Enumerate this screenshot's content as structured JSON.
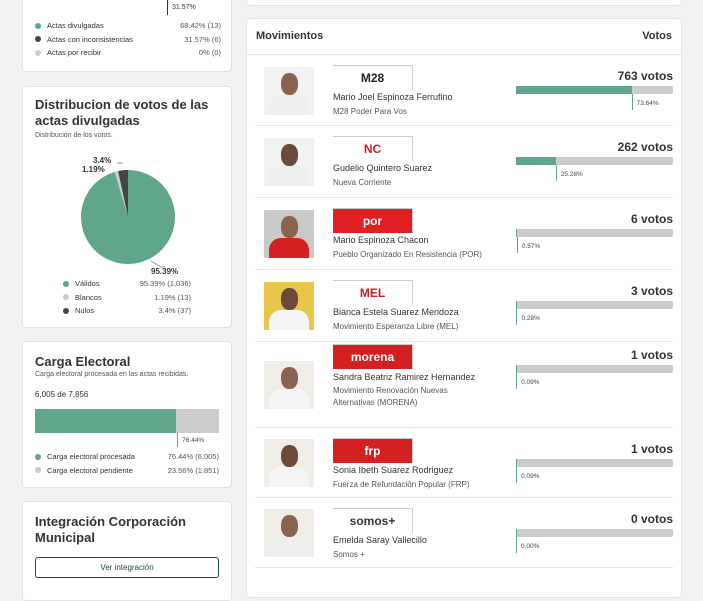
{
  "actas": {
    "top_pct": "31.57%",
    "legend": [
      {
        "label": "Actas divulgadas",
        "value": "68.42% (13)",
        "color": "#5fa68a"
      },
      {
        "label": "Actas con inconsistencias",
        "value": "31.57% (6)",
        "color": "#444444"
      },
      {
        "label": "Actas por recibir",
        "value": "0% (0)",
        "color": "#cccccc"
      }
    ]
  },
  "distribucion": {
    "title": "Distribucion de votos de las actas divulgadas",
    "subtitle": "Distribución de los votos.",
    "labels": {
      "nulos": "3.4%",
      "blancos": "1.19%",
      "validos": "95.39%"
    },
    "legend": [
      {
        "label": "Válidos",
        "value": "95.39% (1,036)",
        "color": "#5fa68a"
      },
      {
        "label": "Blancos",
        "value": "1.19% (13)",
        "color": "#cccccc"
      },
      {
        "label": "Nulos",
        "value": "3.4% (37)",
        "color": "#444444"
      }
    ]
  },
  "carga": {
    "title": "Carga Electoral",
    "subtitle": "Carga electoral procesada en las actas recibidas.",
    "count": "6,005 de 7,856",
    "percent": 76.44,
    "pct_label": "76.44%",
    "legend": [
      {
        "label": "Carga electoral procesada",
        "value": "76.44% (6,005)",
        "color": "#5fa68a"
      },
      {
        "label": "Carga electoral pendiente",
        "value": "23.56% (1,851)",
        "color": "#cccccc"
      }
    ]
  },
  "integracion": {
    "title": "Integración Corporación Municipal",
    "button": "Ver integración"
  },
  "movimientos": {
    "header": "Movimientos",
    "header_right": "Votos",
    "candidates": [
      {
        "name": "Mario Joel Espinoza Ferrufino",
        "party": "M28 Poder Para Vos",
        "logo": "M28",
        "logo_bg": "#ffffff",
        "logo_fg": "#222222",
        "votes": "763 votos",
        "percent": 73.64,
        "pct_label": "73.64%",
        "shirt": "#eeeeee"
      },
      {
        "name": "Gudelio Quintero Suarez",
        "party": "Nueva Corriente",
        "logo": "NC",
        "logo_bg": "#ffffff",
        "logo_fg": "#d42020",
        "votes": "262 votos",
        "percent": 25.28,
        "pct_label": "25.28%",
        "shirt": "#eeeeee"
      },
      {
        "name": "Mario Espinoza Chacon",
        "party": "Pueblo Organizado En Resistencia (POR)",
        "logo": "por",
        "logo_bg": "#e02020",
        "logo_fg": "#ffffff",
        "votes": "6 votos",
        "percent": 0.57,
        "pct_label": "0.57%",
        "shirt": "#d42020"
      },
      {
        "name": "Bianca Estela Suarez Mendoza",
        "party": "Movimiento Esperanza Libre (MEL)",
        "logo": "MEL",
        "logo_bg": "#ffffff",
        "logo_fg": "#c02020",
        "votes": "3 votos",
        "percent": 0.28,
        "pct_label": "0.28%",
        "shirt": "#f5f5f5"
      },
      {
        "name": "Sandra Beatriz Ramirez Hernandez",
        "party": "Movimiento Renovación Nuevas Alternativas (MORENA)",
        "logo": "morena",
        "logo_bg": "#d42020",
        "logo_fg": "#ffffff",
        "votes": "1 votos",
        "percent": 0.09,
        "pct_label": "0.09%",
        "shirt": "#f5f5f5"
      },
      {
        "name": "Sonia Ibeth Suarez Rodriguez",
        "party": "Fuerza de Refundación Popular (FRP)",
        "logo": "frp",
        "logo_bg": "#d42020",
        "logo_fg": "#ffffff",
        "votes": "1 votos",
        "percent": 0.09,
        "pct_label": "0.09%",
        "shirt": "#f5f5f5"
      },
      {
        "name": "Emelda Saray Vallecillo",
        "party": "Somos +",
        "logo": "somos+",
        "logo_bg": "#ffffff",
        "logo_fg": "#333333",
        "votes": "0 votos",
        "percent": 0,
        "pct_label": "0.00%",
        "shirt": "#eeeeee"
      }
    ]
  }
}
